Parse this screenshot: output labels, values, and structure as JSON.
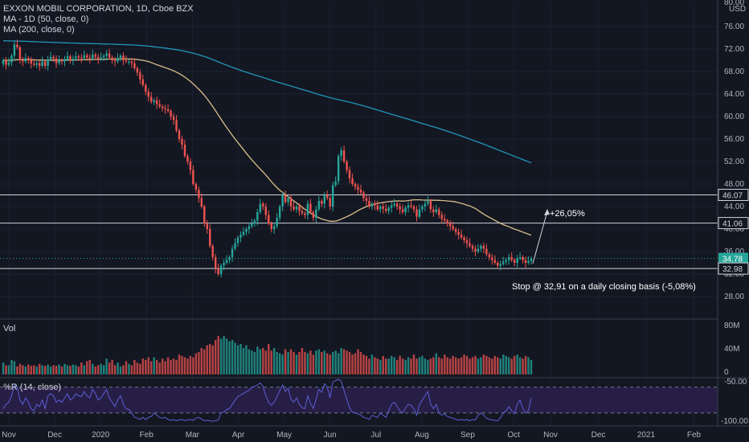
{
  "header": {
    "title": "EXXON MOBIL CORPORATION, 1D, Cboe BZX",
    "ma50_label": "MA - 1D (50, close, 0)",
    "ma200_label": "MA (200, close, 0)",
    "currency": "USD",
    "top_price": "80.00"
  },
  "volume_panel": {
    "label": "Vol",
    "ticks": [
      "80M",
      "40M",
      "0"
    ]
  },
  "wr_panel": {
    "label": "%R (14, close)",
    "ticks": [
      "-50.00",
      "-100.00"
    ]
  },
  "annotations": {
    "target": "+26,05%",
    "stop": "Stop @ 32,91 on a daily closing basis (-5,08%)"
  },
  "price_tags": [
    {
      "text": "46.07",
      "style": "line"
    },
    {
      "text": "41.06",
      "style": "line"
    },
    {
      "text": "34.78",
      "style": "green"
    },
    {
      "text": "34:04",
      "style": "green"
    },
    {
      "text": "32.98",
      "style": "line"
    }
  ],
  "colors": {
    "background": "#131722",
    "up": "#26a69a",
    "down": "#ef5350",
    "ma50": "#d9c08a",
    "ma200": "#2196b8",
    "wr_band": "#2a1f4a",
    "wr_line": "#5a5fd6"
  },
  "chart_data": {
    "type": "candlestick",
    "ylim": [
      24,
      80
    ],
    "y_ticks": [
      28,
      32,
      36,
      40,
      44,
      48,
      52,
      56,
      60,
      64,
      68,
      72,
      76
    ],
    "x_labels": [
      "Nov",
      "Dec",
      "2020",
      "Feb",
      "Mar",
      "Apr",
      "May",
      "Jun",
      "Jul",
      "Aug",
      "Sep",
      "Oct",
      "Nov",
      "Dec",
      "2021",
      "Feb"
    ],
    "horizontal_levels": [
      46.07,
      41.06,
      32.98
    ],
    "closes": [
      70.0,
      69.2,
      69.6,
      70.8,
      72.8,
      72.3,
      70.0,
      69.8,
      70.4,
      70.0,
      69.4,
      69.2,
      69.5,
      69.0,
      69.8,
      69.0,
      70.2,
      70.6,
      70.3,
      69.5,
      70.0,
      69.8,
      70.2,
      70.7,
      70.0,
      70.3,
      70.7,
      70.5,
      70.4,
      70.9,
      70.5,
      70.3,
      71.0,
      70.6,
      70.2,
      70.5,
      70.8,
      71.2,
      70.5,
      70.0,
      69.8,
      70.4,
      70.8,
      70.0,
      69.8,
      69.8,
      69.5,
      68.6,
      67.8,
      66.6,
      65.6,
      64.4,
      63.5,
      62.6,
      62.9,
      62.2,
      61.8,
      61.5,
      61.3,
      61.0,
      60.0,
      59.4,
      57.5,
      56.0,
      55.0,
      53.0,
      52.0,
      50.5,
      48.0,
      47.0,
      45.5,
      44.0,
      41.0,
      40.0,
      37.0,
      35.0,
      33.0,
      32.0,
      33.5,
      34.0,
      34.5,
      35.0,
      36.5,
      37.5,
      38.5,
      39.0,
      39.5,
      40.0,
      40.5,
      41.0,
      41.5,
      43.0,
      44.5,
      44.0,
      42.5,
      41.0,
      40.0,
      40.5,
      42.0,
      44.0,
      46.0,
      44.8,
      45.5,
      44.0,
      43.5,
      44.0,
      43.2,
      42.8,
      42.5,
      44.5,
      43.0,
      42.0,
      43.5,
      45.0,
      44.5,
      46.0,
      45.5,
      44.0,
      47.8,
      48.5,
      53.0,
      54.0,
      52.0,
      50.5,
      49.0,
      48.0,
      47.5,
      47.0,
      46.5,
      45.5,
      45.0,
      44.0,
      44.5,
      44.2,
      43.5,
      44.0,
      43.6,
      43.2,
      43.8,
      44.2,
      44.5,
      44.0,
      43.5,
      43.0,
      43.8,
      44.2,
      44.0,
      43.5,
      42.2,
      43.5,
      44.0,
      44.5,
      45.0,
      43.5,
      43.0,
      43.5,
      42.5,
      41.8,
      41.5,
      41.0,
      40.5,
      40.0,
      39.5,
      39.0,
      38.5,
      38.0,
      37.5,
      37.0,
      36.5,
      36.0,
      36.5,
      37.0,
      36.5,
      35.5,
      35.0,
      34.5,
      34.0,
      33.5,
      33.8,
      34.2,
      34.5,
      35.0,
      34.5,
      34.0,
      34.8,
      35.0,
      34.5,
      34.0,
      34.3,
      34.78
    ],
    "volume_ylim": [
      0,
      80
    ],
    "volumes": [
      18,
      14,
      14,
      22,
      20,
      12,
      16,
      14,
      12,
      15,
      13,
      14,
      12,
      16,
      14,
      13,
      15,
      12,
      14,
      13,
      15,
      12,
      16,
      14,
      13,
      15,
      14,
      12,
      18,
      14,
      20,
      22,
      16,
      12,
      14,
      16,
      14,
      24,
      18,
      22,
      14,
      18,
      12,
      14,
      20,
      16,
      14,
      22,
      18,
      16,
      24,
      22,
      26,
      20,
      26,
      22,
      18,
      24,
      20,
      26,
      22,
      24,
      22,
      30,
      28,
      26,
      24,
      28,
      26,
      32,
      34,
      40,
      38,
      44,
      46,
      44,
      52,
      58,
      54,
      58,
      54,
      50,
      52,
      48,
      44,
      46,
      40,
      44,
      38,
      36,
      34,
      42,
      38,
      40,
      36,
      46,
      36,
      40,
      34,
      32,
      30,
      38,
      34,
      38,
      34,
      30,
      34,
      40,
      34,
      32,
      36,
      30,
      36,
      38,
      34,
      36,
      32,
      30,
      34,
      36,
      32,
      40,
      38,
      36,
      34,
      30,
      32,
      38,
      34,
      30,
      28,
      24,
      30,
      26,
      24,
      22,
      28,
      24,
      24,
      28,
      26,
      22,
      28,
      24,
      22,
      26,
      24,
      30,
      24,
      26,
      28,
      24,
      22,
      24,
      26,
      32,
      26,
      24,
      30,
      26,
      24,
      28,
      26,
      24,
      26,
      30,
      28,
      24,
      26,
      28,
      24,
      26,
      30,
      28,
      26,
      24,
      28,
      26,
      24,
      30,
      28,
      26,
      24,
      28,
      30,
      26,
      24,
      28,
      26,
      22,
      24
    ],
    "wr_ylim": [
      -110,
      0
    ],
    "wr_levels": [
      -20,
      -80
    ],
    "wr": [
      -70,
      -60,
      -55,
      -40,
      -15,
      -20,
      -50,
      -60,
      -45,
      -55,
      -70,
      -75,
      -60,
      -65,
      -50,
      -70,
      -40,
      -35,
      -40,
      -55,
      -50,
      -55,
      -45,
      -35,
      -50,
      -45,
      -35,
      -40,
      -42,
      -30,
      -40,
      -45,
      -25,
      -35,
      -50,
      -45,
      -35,
      -25,
      -45,
      -55,
      -65,
      -50,
      -40,
      -60,
      -70,
      -72,
      -80,
      -90,
      -92,
      -95,
      -90,
      -95,
      -90,
      -88,
      -80,
      -85,
      -90,
      -92,
      -90,
      -95,
      -97,
      -95,
      -98,
      -96,
      -95,
      -98,
      -96,
      -95,
      -97,
      -92,
      -90,
      -94,
      -98,
      -97,
      -98,
      -99,
      -98,
      -96,
      -80,
      -78,
      -72,
      -70,
      -60,
      -50,
      -42,
      -38,
      -35,
      -30,
      -28,
      -20,
      -18,
      -15,
      -10,
      -18,
      -40,
      -55,
      -62,
      -55,
      -42,
      -28,
      -15,
      -30,
      -22,
      -48,
      -55,
      -45,
      -60,
      -68,
      -70,
      -40,
      -58,
      -70,
      -48,
      -25,
      -32,
      -12,
      -20,
      -45,
      -8,
      -5,
      -2,
      -6,
      -28,
      -48,
      -68,
      -78,
      -80,
      -82,
      -85,
      -90,
      -92,
      -95,
      -85,
      -88,
      -90,
      -80,
      -85,
      -90,
      -75,
      -60,
      -55,
      -65,
      -75,
      -80,
      -68,
      -60,
      -62,
      -70,
      -85,
      -60,
      -50,
      -40,
      -30,
      -60,
      -70,
      -60,
      -80,
      -85,
      -82,
      -88,
      -90,
      -92,
      -95,
      -96,
      -95,
      -97,
      -95,
      -98,
      -95,
      -96,
      -85,
      -80,
      -85,
      -92,
      -95,
      -96,
      -97,
      -98,
      -90,
      -80,
      -75,
      -65,
      -75,
      -82,
      -60,
      -50,
      -70,
      -80,
      -75,
      -45
    ]
  }
}
